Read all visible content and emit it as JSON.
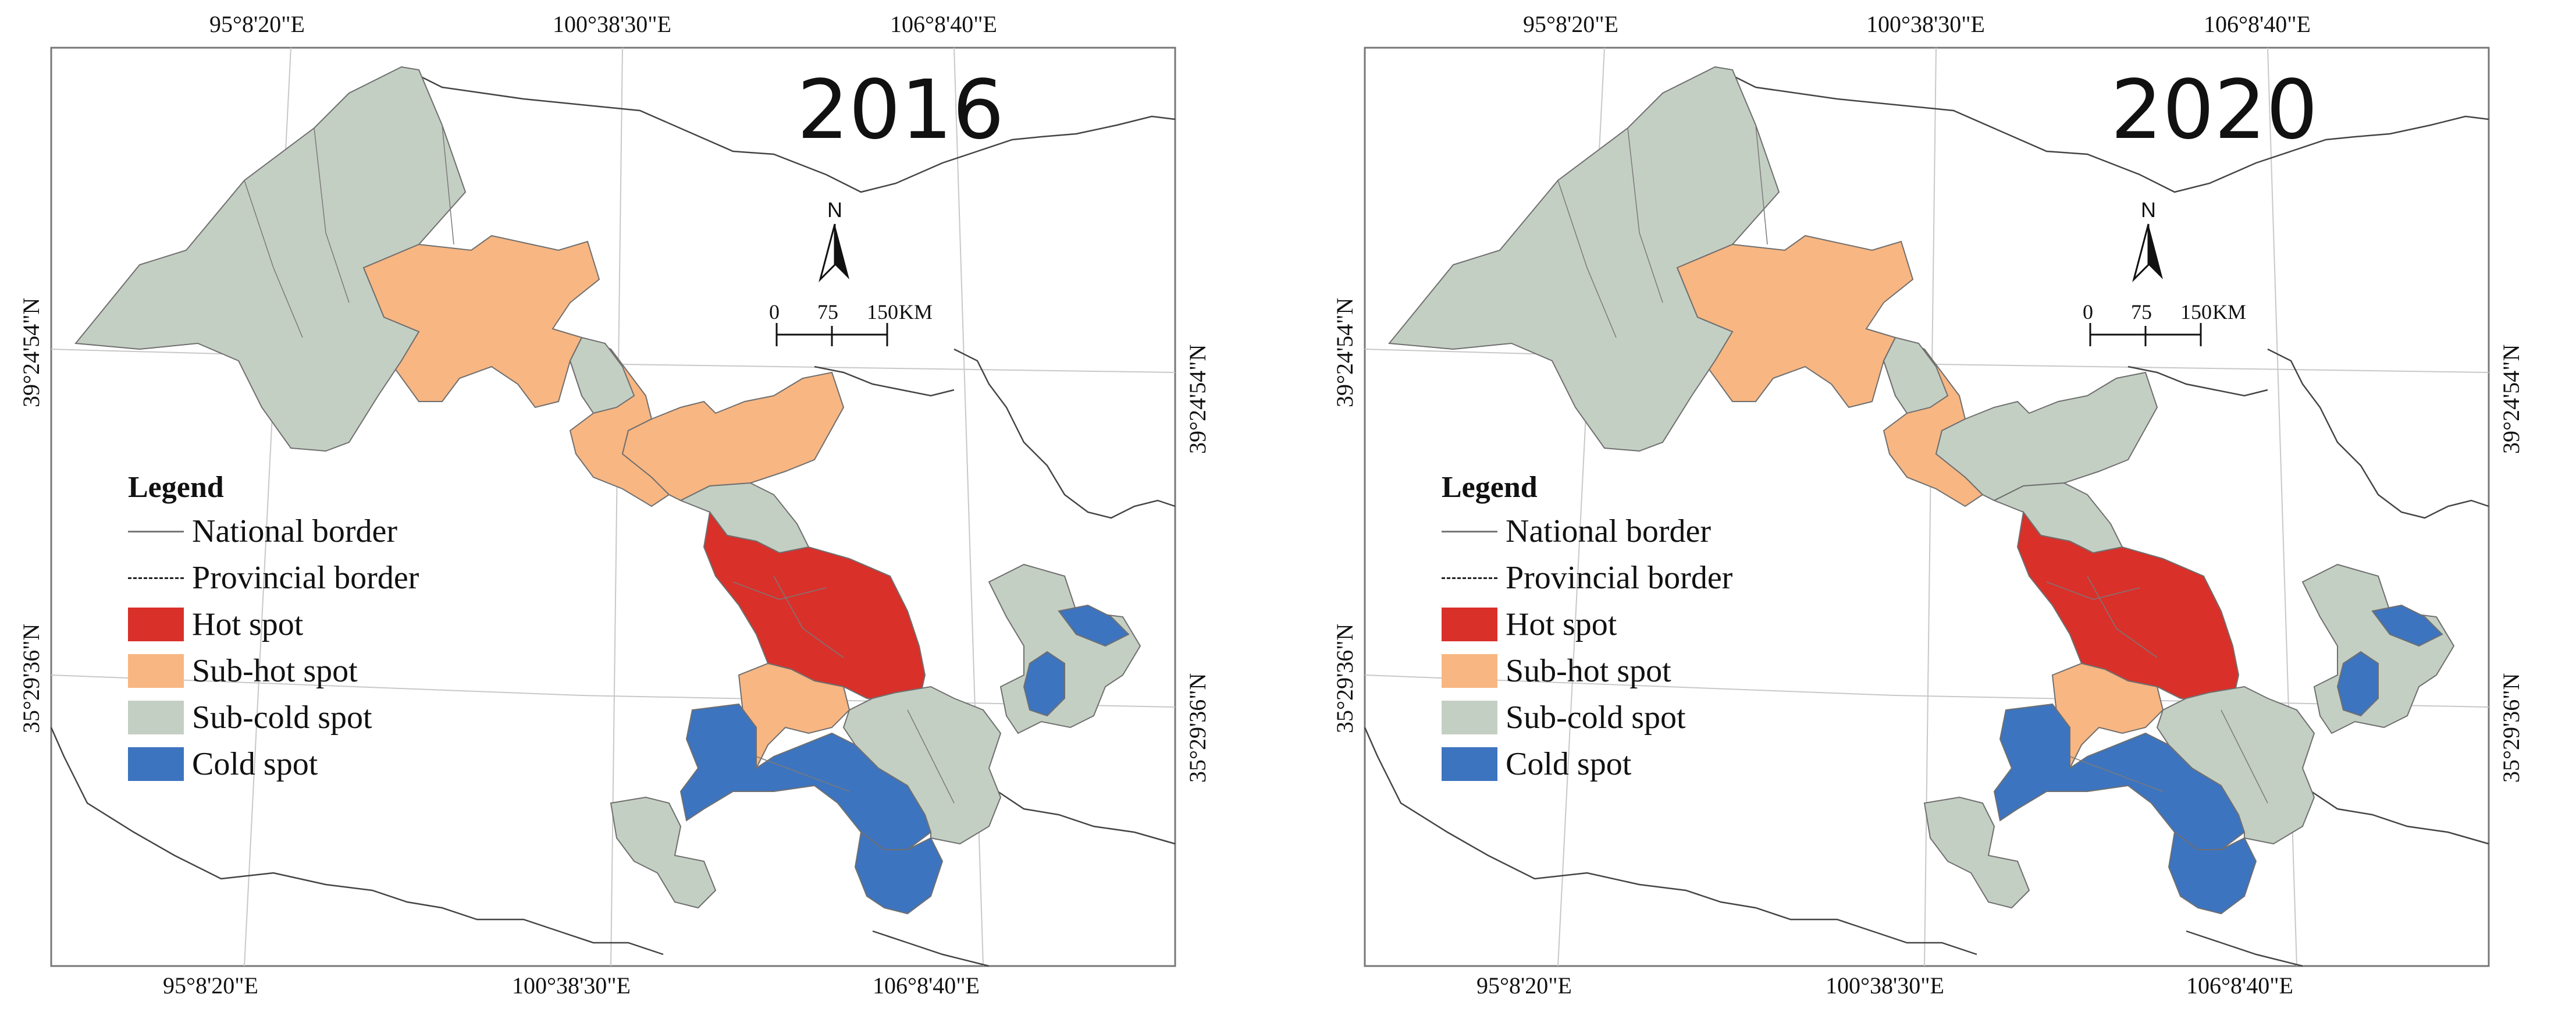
{
  "colors": {
    "hot": "#d9302a",
    "sub_hot": "#f8b682",
    "sub_cold": "#c4cfc3",
    "cold": "#3d74bf",
    "border": "#666666",
    "frame": "#777777"
  },
  "axes": {
    "top_longitudes": [
      "95°8'20\"E",
      "100°38'30\"E",
      "106°8'40\"E"
    ],
    "bottom_longitudes": [
      "95°8'20\"E",
      "100°38'30\"E",
      "106°8'40\"E"
    ],
    "left_latitudes": [
      "39°24'54\"N",
      "35°29'36\"N"
    ],
    "right_latitudes": [
      "39°24'54\"N",
      "35°29'36\"N"
    ]
  },
  "scale_bar": {
    "labels": [
      "0",
      "75",
      "150"
    ],
    "unit": "KM"
  },
  "north_arrow": "N",
  "legend": {
    "title": "Legend",
    "items": [
      {
        "label": "National border",
        "symbol": "line",
        "color_key": "border"
      },
      {
        "label": "Provincial border",
        "symbol": "dashed-line",
        "color_key": "border"
      },
      {
        "label": "Hot spot",
        "symbol": "fill",
        "color_key": "hot"
      },
      {
        "label": "Sub-hot spot",
        "symbol": "fill",
        "color_key": "sub_hot"
      },
      {
        "label": "Sub-cold spot",
        "symbol": "fill",
        "color_key": "sub_cold"
      },
      {
        "label": "Cold spot",
        "symbol": "fill",
        "color_key": "cold"
      }
    ]
  },
  "panels": [
    {
      "year": "2016",
      "regions": [
        {
          "name": "west",
          "class": "sub_cold"
        },
        {
          "name": "northwest-corridor",
          "class": "sub_hot"
        },
        {
          "name": "corridor-middle",
          "class": "sub_hot"
        },
        {
          "name": "corridor-gap",
          "class": "sub_cold"
        },
        {
          "name": "northeast-lobe",
          "class": "sub_hot"
        },
        {
          "name": "neck",
          "class": "sub_cold"
        },
        {
          "name": "central-core",
          "class": "hot"
        },
        {
          "name": "central-south",
          "class": "sub_hot"
        },
        {
          "name": "southwest",
          "class": "cold"
        },
        {
          "name": "southeast",
          "class": "sub_cold"
        },
        {
          "name": "south-tip",
          "class": "cold"
        },
        {
          "name": "east-block",
          "class": "sub_cold"
        },
        {
          "name": "east-spots",
          "class": "cold"
        },
        {
          "name": "southwest-island",
          "class": "sub_cold"
        }
      ]
    },
    {
      "year": "2020",
      "regions": [
        {
          "name": "west",
          "class": "sub_cold"
        },
        {
          "name": "northwest-corridor",
          "class": "sub_hot"
        },
        {
          "name": "corridor-middle",
          "class": "sub_hot"
        },
        {
          "name": "corridor-gap",
          "class": "sub_cold"
        },
        {
          "name": "northeast-lobe",
          "class": "sub_cold"
        },
        {
          "name": "neck",
          "class": "sub_cold"
        },
        {
          "name": "central-core",
          "class": "hot"
        },
        {
          "name": "central-south",
          "class": "sub_hot"
        },
        {
          "name": "southwest",
          "class": "cold"
        },
        {
          "name": "southeast",
          "class": "sub_cold"
        },
        {
          "name": "south-tip",
          "class": "cold"
        },
        {
          "name": "east-block",
          "class": "sub_cold"
        },
        {
          "name": "east-spots",
          "class": "cold"
        },
        {
          "name": "southwest-island",
          "class": "sub_cold"
        }
      ]
    }
  ]
}
